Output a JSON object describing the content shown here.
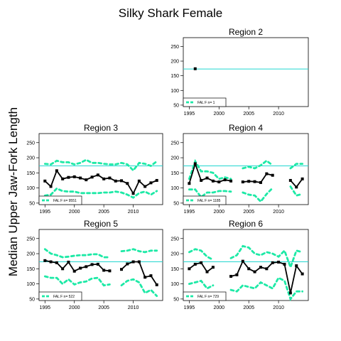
{
  "figure": {
    "title": "Silky Shark Female",
    "ylabel": "Median Upper Jaw-Fork Length"
  },
  "chart_data": {
    "type": "line",
    "title": "Silky Shark Female",
    "ylabel": "Median Upper Jaw-Fork Length",
    "xlim": [
      1994,
      2015
    ],
    "ylim": [
      45,
      280
    ],
    "xticks": [
      1995,
      2000,
      2005,
      2010
    ],
    "yticks": [
      50,
      100,
      150,
      200,
      250
    ],
    "reference_line": 173,
    "colors": {
      "median": "#000000",
      "bounds": "#1de9a6",
      "reference": "#22d6d0"
    },
    "panels": [
      {
        "region": "Region 2",
        "legend": "FAL F n= 1",
        "show_xticks": true,
        "x": [
          1996
        ],
        "median": [
          174
        ],
        "upper": [
          null
        ],
        "lower": [
          null
        ]
      },
      {
        "region": "Region 3",
        "legend": "FAL F n= 9551",
        "show_xticks": true,
        "x": [
          1995,
          1996,
          1997,
          1998,
          1999,
          2000,
          2001,
          2002,
          2003,
          2004,
          2005,
          2006,
          2007,
          2008,
          2009,
          2010,
          2011,
          2012,
          2013,
          2014
        ],
        "median": [
          123,
          105,
          157,
          130,
          135,
          137,
          133,
          127,
          136,
          143,
          130,
          133,
          123,
          124,
          115,
          82,
          123,
          105,
          117,
          125
        ],
        "upper": [
          180,
          178,
          190,
          185,
          185,
          178,
          183,
          193,
          183,
          183,
          180,
          178,
          178,
          183,
          178,
          158,
          183,
          180,
          173,
          188
        ],
        "lower": [
          75,
          78,
          98,
          90,
          88,
          88,
          83,
          83,
          83,
          83,
          85,
          85,
          88,
          85,
          78,
          68,
          83,
          88,
          78,
          90
        ]
      },
      {
        "region": "Region 4",
        "legend": "FAL F n= 1185",
        "show_xticks": true,
        "x": [
          1995,
          1996,
          1997,
          1998,
          1999,
          2000,
          2001,
          2002,
          2003,
          2004,
          2005,
          2006,
          2007,
          2008,
          2009,
          2010,
          2011,
          2012,
          2013,
          2014
        ],
        "median": [
          115,
          180,
          125,
          133,
          123,
          120,
          127,
          123,
          null,
          120,
          122,
          121,
          118,
          147,
          142,
          null,
          null,
          125,
          103,
          130
        ],
        "upper": [
          130,
          188,
          155,
          155,
          150,
          130,
          135,
          130,
          null,
          165,
          170,
          165,
          175,
          190,
          175,
          null,
          null,
          165,
          180,
          180
        ],
        "lower": [
          95,
          95,
          70,
          85,
          85,
          90,
          90,
          88,
          null,
          85,
          78,
          75,
          55,
          80,
          100,
          null,
          null,
          105,
          75,
          80
        ]
      },
      {
        "region": "Region 5",
        "legend": "FAL F n= 522",
        "show_xticks": true,
        "x": [
          1995,
          1996,
          1997,
          1998,
          1999,
          2000,
          2001,
          2002,
          2003,
          2004,
          2005,
          2006,
          2007,
          2008,
          2009,
          2010,
          2011,
          2012,
          2013,
          2014
        ],
        "median": [
          177,
          173,
          170,
          150,
          172,
          142,
          152,
          157,
          164,
          165,
          145,
          143,
          null,
          148,
          166,
          173,
          173,
          122,
          127,
          97
        ],
        "upper": [
          215,
          200,
          195,
          188,
          190,
          193,
          195,
          195,
          198,
          198,
          188,
          188,
          null,
          208,
          210,
          215,
          208,
          205,
          210,
          210
        ],
        "lower": [
          125,
          120,
          120,
          100,
          115,
          98,
          105,
          108,
          118,
          120,
          95,
          98,
          null,
          95,
          110,
          115,
          105,
          70,
          80,
          60
        ]
      },
      {
        "region": "Region 6",
        "legend": "FAL F n= 729",
        "show_xticks": true,
        "x": [
          1995,
          1996,
          1997,
          1998,
          1999,
          2000,
          2001,
          2002,
          2003,
          2004,
          2005,
          2006,
          2007,
          2008,
          2009,
          2010,
          2011,
          2012,
          2013,
          2014
        ],
        "median": [
          150,
          165,
          170,
          140,
          155,
          null,
          null,
          125,
          130,
          175,
          150,
          140,
          155,
          150,
          170,
          172,
          165,
          70,
          160,
          133
        ],
        "upper": [
          205,
          215,
          210,
          190,
          180,
          null,
          null,
          185,
          195,
          225,
          220,
          200,
          195,
          205,
          200,
          190,
          210,
          155,
          210,
          205
        ],
        "lower": [
          100,
          105,
          110,
          85,
          95,
          null,
          null,
          80,
          75,
          95,
          90,
          85,
          105,
          95,
          85,
          120,
          110,
          50,
          75,
          75
        ]
      }
    ]
  }
}
